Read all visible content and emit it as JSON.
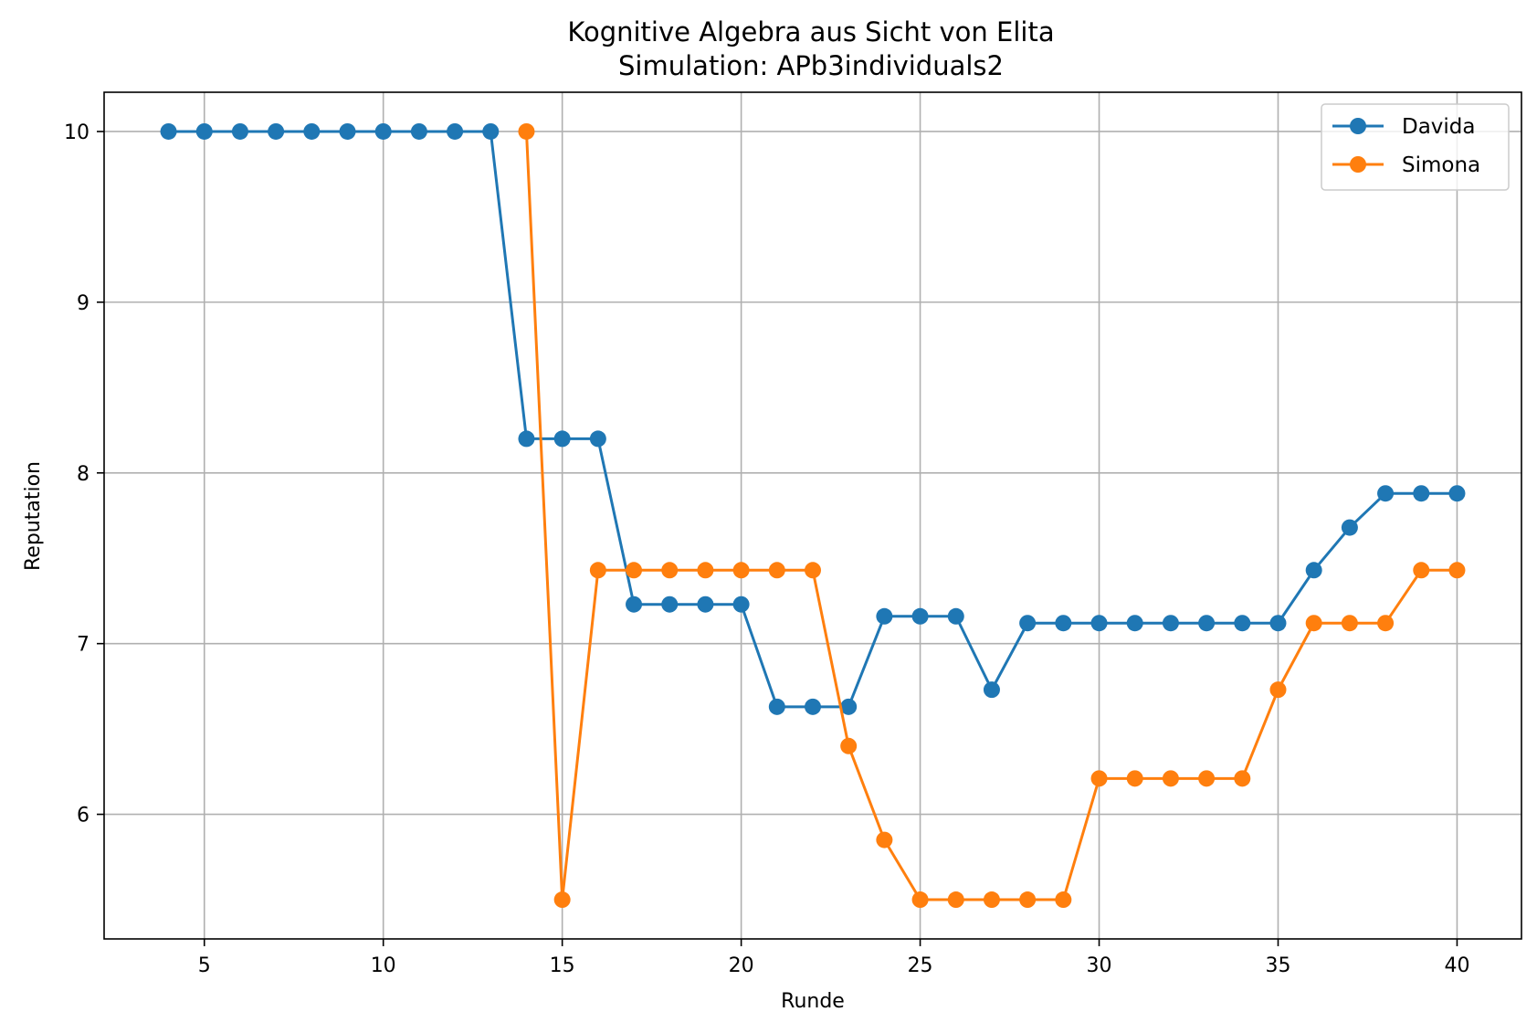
{
  "chart_data": {
    "type": "line",
    "title": "Kognitive Algebra aus Sicht von Elita",
    "subtitle": "Simulation: APb3individuals2",
    "xlabel": "Runde",
    "ylabel": "Reputation",
    "xlim": [
      2.2,
      41.8
    ],
    "ylim": [
      5.27,
      10.23
    ],
    "xticks": [
      5,
      10,
      15,
      20,
      25,
      30,
      35,
      40
    ],
    "yticks": [
      6,
      7,
      8,
      9,
      10
    ],
    "grid": true,
    "legend_position": "top-right",
    "series": [
      {
        "name": "Davida",
        "color": "#1f77b4",
        "x": [
          4,
          5,
          6,
          7,
          8,
          9,
          10,
          11,
          12,
          13,
          14,
          15,
          16,
          17,
          18,
          19,
          20,
          21,
          22,
          23,
          24,
          25,
          26,
          27,
          28,
          29,
          30,
          31,
          32,
          33,
          34,
          35,
          36,
          37,
          38,
          39,
          40
        ],
        "y": [
          10,
          10,
          10,
          10,
          10,
          10,
          10,
          10,
          10,
          10,
          8.2,
          8.2,
          8.2,
          7.23,
          7.23,
          7.23,
          7.23,
          6.63,
          6.63,
          6.63,
          7.16,
          7.16,
          7.16,
          6.73,
          7.12,
          7.12,
          7.12,
          7.12,
          7.12,
          7.12,
          7.12,
          7.12,
          7.43,
          7.68,
          7.88,
          7.88,
          7.88
        ]
      },
      {
        "name": "Simona",
        "color": "#ff7f0e",
        "x": [
          14,
          15,
          16,
          17,
          18,
          19,
          20,
          21,
          22,
          23,
          24,
          25,
          26,
          27,
          28,
          29,
          30,
          31,
          32,
          33,
          34,
          35,
          36,
          37,
          38,
          39,
          40
        ],
        "y": [
          10,
          5.5,
          7.43,
          7.43,
          7.43,
          7.43,
          7.43,
          7.43,
          7.43,
          6.4,
          5.85,
          5.5,
          5.5,
          5.5,
          5.5,
          5.5,
          6.21,
          6.21,
          6.21,
          6.21,
          6.21,
          6.73,
          7.12,
          7.12,
          7.12,
          7.43,
          7.43
        ]
      }
    ]
  }
}
